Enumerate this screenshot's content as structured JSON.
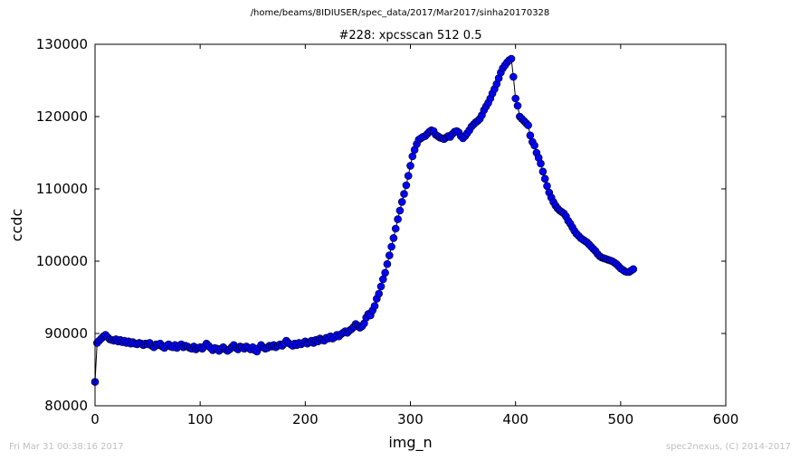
{
  "suptitle": "/home/beams/8IDIUSER/spec_data/2017/Mar2017/sinha20170328",
  "footer": {
    "timestamp": "Fri Mar 31 00:38:16 2017",
    "credit": "spec2nexus, (C) 2014-2017"
  },
  "colors": {
    "marker": "#0000ff",
    "line": "#000000",
    "footer": "#bfbfbf"
  },
  "chart_data": {
    "type": "scatter",
    "title": "#228: xpcsscan 512 0.5",
    "xlabel": "img_n",
    "ylabel": "ccdc",
    "xlim": [
      0,
      600
    ],
    "ylim": [
      80000,
      130000
    ],
    "xticks": [
      "0",
      "100",
      "200",
      "300",
      "400",
      "500",
      "600"
    ],
    "yticks": [
      "80000",
      "90000",
      "100000",
      "110000",
      "120000",
      "130000"
    ],
    "grid": false,
    "series": [
      {
        "marker": "circle",
        "connected": true,
        "points": [
          [
            0,
            83300
          ],
          [
            2,
            88700
          ],
          [
            4,
            89000
          ],
          [
            6,
            89300
          ],
          [
            8,
            89600
          ],
          [
            10,
            89800
          ],
          [
            12,
            89500
          ],
          [
            14,
            89200
          ],
          [
            16,
            89100
          ],
          [
            18,
            89000
          ],
          [
            20,
            89200
          ],
          [
            22,
            88900
          ],
          [
            24,
            89100
          ],
          [
            26,
            88800
          ],
          [
            28,
            89000
          ],
          [
            30,
            88700
          ],
          [
            32,
            88900
          ],
          [
            34,
            88600
          ],
          [
            36,
            88800
          ],
          [
            38,
            88600
          ],
          [
            40,
            88500
          ],
          [
            42,
            88700
          ],
          [
            44,
            88600
          ],
          [
            46,
            88400
          ],
          [
            48,
            88600
          ],
          [
            50,
            88500
          ],
          [
            52,
            88700
          ],
          [
            54,
            88300
          ],
          [
            56,
            88100
          ],
          [
            58,
            88500
          ],
          [
            60,
            88400
          ],
          [
            62,
            88600
          ],
          [
            64,
            88200
          ],
          [
            66,
            88000
          ],
          [
            68,
            88300
          ],
          [
            70,
            88500
          ],
          [
            72,
            88200
          ],
          [
            74,
            88100
          ],
          [
            76,
            88400
          ],
          [
            78,
            88000
          ],
          [
            80,
            88300
          ],
          [
            82,
            88500
          ],
          [
            84,
            88100
          ],
          [
            86,
            88300
          ],
          [
            88,
            88200
          ],
          [
            90,
            88000
          ],
          [
            92,
            87900
          ],
          [
            94,
            88200
          ],
          [
            96,
            87800
          ],
          [
            98,
            88000
          ],
          [
            100,
            88100
          ],
          [
            102,
            87900
          ],
          [
            104,
            88200
          ],
          [
            106,
            88600
          ],
          [
            108,
            88300
          ],
          [
            110,
            88000
          ],
          [
            112,
            87700
          ],
          [
            114,
            88000
          ],
          [
            116,
            87900
          ],
          [
            118,
            87600
          ],
          [
            120,
            87900
          ],
          [
            122,
            88100
          ],
          [
            124,
            87800
          ],
          [
            126,
            87600
          ],
          [
            128,
            87800
          ],
          [
            130,
            88100
          ],
          [
            132,
            88400
          ],
          [
            134,
            88000
          ],
          [
            136,
            87800
          ],
          [
            138,
            88200
          ],
          [
            140,
            88100
          ],
          [
            142,
            87900
          ],
          [
            144,
            88200
          ],
          [
            146,
            88000
          ],
          [
            148,
            87800
          ],
          [
            150,
            88100
          ],
          [
            152,
            87700
          ],
          [
            154,
            87500
          ],
          [
            156,
            88000
          ],
          [
            158,
            88400
          ],
          [
            160,
            88100
          ],
          [
            162,
            87900
          ],
          [
            164,
            88000
          ],
          [
            166,
            88300
          ],
          [
            168,
            88200
          ],
          [
            170,
            88400
          ],
          [
            172,
            88100
          ],
          [
            174,
            88300
          ],
          [
            176,
            88500
          ],
          [
            178,
            88300
          ],
          [
            180,
            88600
          ],
          [
            182,
            89000
          ],
          [
            184,
            88700
          ],
          [
            186,
            88500
          ],
          [
            188,
            88300
          ],
          [
            190,
            88600
          ],
          [
            192,
            88400
          ],
          [
            194,
            88700
          ],
          [
            196,
            88500
          ],
          [
            198,
            88700
          ],
          [
            200,
            88900
          ],
          [
            202,
            88600
          ],
          [
            204,
            88800
          ],
          [
            206,
            89000
          ],
          [
            208,
            88700
          ],
          [
            210,
            89100
          ],
          [
            212,
            88900
          ],
          [
            214,
            89300
          ],
          [
            216,
            89100
          ],
          [
            218,
            89000
          ],
          [
            220,
            89400
          ],
          [
            222,
            89300
          ],
          [
            224,
            89600
          ],
          [
            226,
            89300
          ],
          [
            228,
            89500
          ],
          [
            230,
            89800
          ],
          [
            232,
            89600
          ],
          [
            234,
            89900
          ],
          [
            236,
            90100
          ],
          [
            238,
            90300
          ],
          [
            240,
            90100
          ],
          [
            242,
            90400
          ],
          [
            244,
            90600
          ],
          [
            246,
            90900
          ],
          [
            248,
            91300
          ],
          [
            250,
            91100
          ],
          [
            252,
            90800
          ],
          [
            254,
            91000
          ],
          [
            256,
            91400
          ],
          [
            258,
            92200
          ],
          [
            260,
            92700
          ],
          [
            262,
            92500
          ],
          [
            264,
            93200
          ],
          [
            266,
            93800
          ],
          [
            268,
            94800
          ],
          [
            270,
            95500
          ],
          [
            272,
            96500
          ],
          [
            274,
            97500
          ],
          [
            276,
            98400
          ],
          [
            278,
            99600
          ],
          [
            280,
            100800
          ],
          [
            282,
            102000
          ],
          [
            284,
            103200
          ],
          [
            286,
            104500
          ],
          [
            288,
            105800
          ],
          [
            290,
            107000
          ],
          [
            292,
            108200
          ],
          [
            294,
            109300
          ],
          [
            296,
            110500
          ],
          [
            298,
            111800
          ],
          [
            300,
            113200
          ],
          [
            302,
            114500
          ],
          [
            304,
            115400
          ],
          [
            306,
            116200
          ],
          [
            308,
            116800
          ],
          [
            310,
            117000
          ],
          [
            312,
            117200
          ],
          [
            314,
            117300
          ],
          [
            316,
            117600
          ],
          [
            318,
            117900
          ],
          [
            320,
            118100
          ],
          [
            322,
            118000
          ],
          [
            324,
            117500
          ],
          [
            326,
            117300
          ],
          [
            328,
            117100
          ],
          [
            330,
            117000
          ],
          [
            332,
            116900
          ],
          [
            334,
            117100
          ],
          [
            336,
            117300
          ],
          [
            338,
            117200
          ],
          [
            340,
            117600
          ],
          [
            342,
            117900
          ],
          [
            344,
            118000
          ],
          [
            346,
            117800
          ],
          [
            348,
            117300
          ],
          [
            350,
            117000
          ],
          [
            352,
            117300
          ],
          [
            354,
            117700
          ],
          [
            356,
            118100
          ],
          [
            358,
            118600
          ],
          [
            360,
            118900
          ],
          [
            362,
            119200
          ],
          [
            364,
            119400
          ],
          [
            366,
            119700
          ],
          [
            368,
            120200
          ],
          [
            370,
            120900
          ],
          [
            372,
            121400
          ],
          [
            374,
            121900
          ],
          [
            376,
            122500
          ],
          [
            378,
            123200
          ],
          [
            380,
            123800
          ],
          [
            382,
            124500
          ],
          [
            384,
            125300
          ],
          [
            386,
            126100
          ],
          [
            388,
            126700
          ],
          [
            390,
            127100
          ],
          [
            392,
            127500
          ],
          [
            394,
            127800
          ],
          [
            396,
            128000
          ],
          [
            398,
            125500
          ],
          [
            400,
            122500
          ],
          [
            402,
            121500
          ],
          [
            404,
            120000
          ],
          [
            406,
            119700
          ],
          [
            408,
            119400
          ],
          [
            410,
            119100
          ],
          [
            412,
            118800
          ],
          [
            414,
            117400
          ],
          [
            416,
            116500
          ],
          [
            418,
            116000
          ],
          [
            420,
            115000
          ],
          [
            422,
            114300
          ],
          [
            424,
            113500
          ],
          [
            426,
            112400
          ],
          [
            428,
            111400
          ],
          [
            430,
            110400
          ],
          [
            432,
            109500
          ],
          [
            434,
            108800
          ],
          [
            436,
            108200
          ],
          [
            438,
            107700
          ],
          [
            440,
            107300
          ],
          [
            442,
            107000
          ],
          [
            444,
            106800
          ],
          [
            446,
            106600
          ],
          [
            448,
            106200
          ],
          [
            450,
            105600
          ],
          [
            452,
            105200
          ],
          [
            454,
            104700
          ],
          [
            456,
            104200
          ],
          [
            458,
            103800
          ],
          [
            460,
            103500
          ],
          [
            462,
            103200
          ],
          [
            464,
            103000
          ],
          [
            466,
            102800
          ],
          [
            468,
            102600
          ],
          [
            470,
            102300
          ],
          [
            472,
            102000
          ],
          [
            474,
            101700
          ],
          [
            476,
            101400
          ],
          [
            478,
            101000
          ],
          [
            480,
            100700
          ],
          [
            482,
            100500
          ],
          [
            484,
            100400
          ],
          [
            486,
            100300
          ],
          [
            488,
            100200
          ],
          [
            490,
            100100
          ],
          [
            492,
            100000
          ],
          [
            494,
            99800
          ],
          [
            496,
            99600
          ],
          [
            498,
            99300
          ],
          [
            500,
            99000
          ],
          [
            502,
            98800
          ],
          [
            504,
            98600
          ],
          [
            506,
            98500
          ],
          [
            508,
            98500
          ],
          [
            510,
            98700
          ],
          [
            512,
            98900
          ]
        ]
      }
    ]
  }
}
